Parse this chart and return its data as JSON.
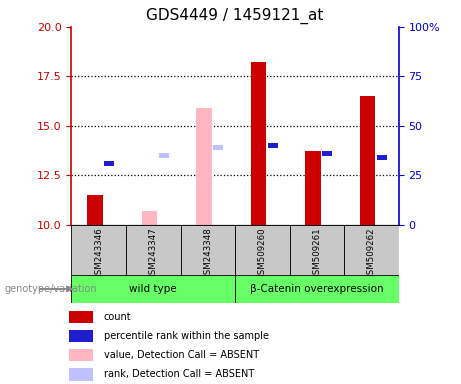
{
  "title": "GDS4449 / 1459121_at",
  "samples": [
    "GSM243346",
    "GSM243347",
    "GSM243348",
    "GSM509260",
    "GSM509261",
    "GSM509262"
  ],
  "ylim": [
    10,
    20
  ],
  "yticks": [
    10,
    12.5,
    15,
    17.5,
    20
  ],
  "right_ylim": [
    0,
    100
  ],
  "right_yticks": [
    0,
    25,
    50,
    75,
    100
  ],
  "right_yticklabels": [
    "0",
    "25",
    "50",
    "75",
    "100%"
  ],
  "count_color": "#CC0000",
  "rank_color": "#1E1ECC",
  "absent_value_color": "#FFB6C1",
  "absent_rank_color": "#C0C0FF",
  "count_data": {
    "GSM243346": {
      "value": 11.5,
      "present": true
    },
    "GSM243347": {
      "value": 10.7,
      "present": false
    },
    "GSM243348": {
      "value": 15.9,
      "present": false
    },
    "GSM509260": {
      "value": 18.2,
      "present": true
    },
    "GSM509261": {
      "value": 13.7,
      "present": true
    },
    "GSM509262": {
      "value": 16.5,
      "present": true
    }
  },
  "rank_data": {
    "GSM243346": {
      "value": 13.1,
      "present": true
    },
    "GSM243347": {
      "value": 13.5,
      "present": false
    },
    "GSM243348": {
      "value": 13.9,
      "present": false
    },
    "GSM509260": {
      "value": 14.0,
      "present": true
    },
    "GSM509261": {
      "value": 13.6,
      "present": true
    },
    "GSM509262": {
      "value": 13.4,
      "present": true
    }
  },
  "legend_items": [
    {
      "label": "count",
      "color": "#CC0000"
    },
    {
      "label": "percentile rank within the sample",
      "color": "#1E1ECC"
    },
    {
      "label": "value, Detection Call = ABSENT",
      "color": "#FFB6C1"
    },
    {
      "label": "rank, Detection Call = ABSENT",
      "color": "#C0C0FF"
    }
  ],
  "genotype_label": "genotype/variation",
  "group_row_color": "#66FF66",
  "sample_bg_color": "#C8C8C8",
  "axis_color": "#CC0000",
  "right_axis_color": "#0000CC",
  "grid_color": "#000000",
  "title_fontsize": 11,
  "tick_fontsize": 8,
  "groups": [
    {
      "name": "wild type",
      "start": 0,
      "end": 2
    },
    {
      "name": "β-Catenin overexpression",
      "start": 3,
      "end": 5
    }
  ]
}
